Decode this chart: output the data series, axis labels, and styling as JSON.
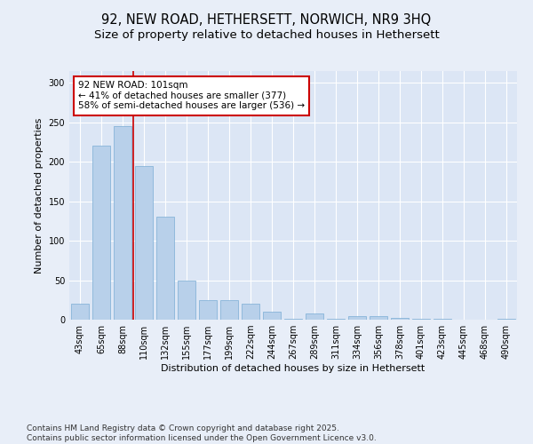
{
  "title_line1": "92, NEW ROAD, HETHERSETT, NORWICH, NR9 3HQ",
  "title_line2": "Size of property relative to detached houses in Hethersett",
  "xlabel": "Distribution of detached houses by size in Hethersett",
  "ylabel": "Number of detached properties",
  "categories": [
    "43sqm",
    "65sqm",
    "88sqm",
    "110sqm",
    "132sqm",
    "155sqm",
    "177sqm",
    "199sqm",
    "222sqm",
    "244sqm",
    "267sqm",
    "289sqm",
    "311sqm",
    "334sqm",
    "356sqm",
    "378sqm",
    "401sqm",
    "423sqm",
    "445sqm",
    "468sqm",
    "490sqm"
  ],
  "values": [
    20,
    220,
    245,
    195,
    130,
    50,
    25,
    25,
    20,
    10,
    1,
    8,
    1,
    4,
    4,
    2,
    1,
    1,
    0,
    0,
    1
  ],
  "bar_color": "#b8d0ea",
  "bar_edge_color": "#7aadd4",
  "bg_color": "#dce6f5",
  "grid_color": "#ffffff",
  "vline_x": 2.5,
  "vline_color": "#cc0000",
  "annotation_text": "92 NEW ROAD: 101sqm\n← 41% of detached houses are smaller (377)\n58% of semi-detached houses are larger (536) →",
  "annotation_box_facecolor": "#ffffff",
  "annotation_box_edgecolor": "#cc0000",
  "ylim": [
    0,
    315
  ],
  "yticks": [
    0,
    50,
    100,
    150,
    200,
    250,
    300
  ],
  "footer": "Contains HM Land Registry data © Crown copyright and database right 2025.\nContains public sector information licensed under the Open Government Licence v3.0.",
  "footer_fontsize": 6.5,
  "title_fontsize1": 10.5,
  "title_fontsize2": 9.5,
  "tick_fontsize": 7,
  "axis_label_fontsize": 8,
  "annotation_fontsize": 7.5,
  "fig_bg_color": "#e8eef8"
}
